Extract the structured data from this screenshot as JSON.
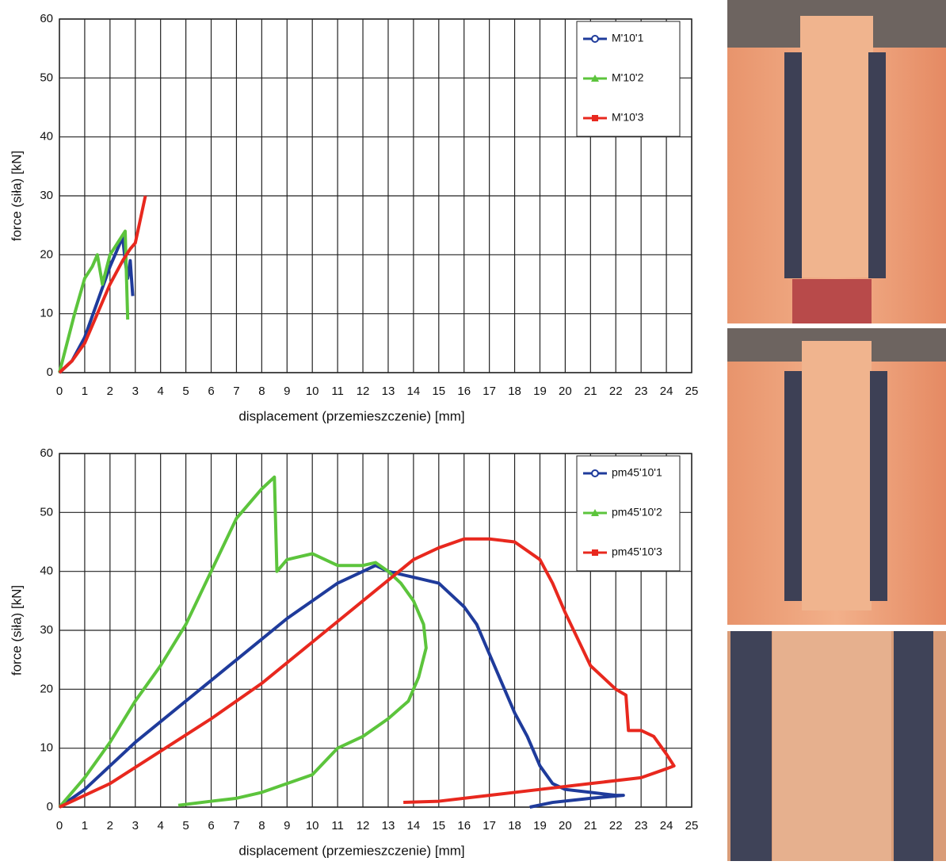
{
  "chart_data": [
    {
      "type": "line",
      "x_label": "displacement (przemieszczenie) [mm]",
      "y_label": "force (siła) [kN]",
      "xlim": [
        0,
        25
      ],
      "ylim": [
        0,
        60
      ],
      "xticks": [
        0,
        1,
        2,
        3,
        4,
        5,
        6,
        7,
        8,
        9,
        10,
        11,
        12,
        13,
        14,
        15,
        16,
        17,
        18,
        19,
        20,
        21,
        22,
        23,
        24,
        25
      ],
      "yticks": [
        0,
        10,
        20,
        30,
        40,
        50,
        60
      ],
      "grid": true,
      "legend": "upper right",
      "series": [
        {
          "name": "M'10'1",
          "color": "#1f3b9b",
          "marker": "circle",
          "x": [
            0,
            0.5,
            1,
            1.5,
            2,
            2.3,
            2.5,
            2.6,
            2.7,
            2.8,
            2.9
          ],
          "values": [
            0,
            2,
            6,
            12,
            18,
            21,
            23,
            19,
            16,
            19,
            13
          ]
        },
        {
          "name": "M'10'2",
          "color": "#5cc43c",
          "marker": "triangle",
          "x": [
            0,
            0.3,
            0.6,
            1,
            1.3,
            1.5,
            1.7,
            2,
            2.3,
            2.6,
            2.7
          ],
          "values": [
            0,
            5,
            10,
            16,
            18,
            20,
            15,
            20,
            22,
            24,
            9
          ]
        },
        {
          "name": "M'10'3",
          "color": "#e8281e",
          "marker": "square",
          "x": [
            0,
            0.5,
            1,
            1.5,
            2,
            2.5,
            2.8,
            3,
            3.2,
            3.4
          ],
          "values": [
            0,
            2,
            5,
            10,
            15,
            19,
            21,
            22,
            26,
            30
          ]
        }
      ]
    },
    {
      "type": "line",
      "x_label": "displacement (przemieszczenie) [mm]",
      "y_label": "force (siła) [kN]",
      "xlim": [
        0,
        25
      ],
      "ylim": [
        0,
        60
      ],
      "xticks": [
        0,
        1,
        2,
        3,
        4,
        5,
        6,
        7,
        8,
        9,
        10,
        11,
        12,
        13,
        14,
        15,
        16,
        17,
        18,
        19,
        20,
        21,
        22,
        23,
        24,
        25
      ],
      "yticks": [
        0,
        10,
        20,
        30,
        40,
        50,
        60
      ],
      "grid": true,
      "legend": "upper right",
      "series": [
        {
          "name": "pm45'10'1",
          "color": "#1f3b9b",
          "marker": "circle",
          "x": [
            0,
            1,
            2,
            3,
            4,
            5,
            6,
            7,
            8,
            9,
            10,
            11,
            12,
            12.5,
            13,
            14,
            15,
            16,
            16.5,
            17,
            17.5,
            18,
            18.5,
            19,
            19.5,
            20,
            21,
            22,
            22.3,
            21,
            19.5,
            18.6
          ],
          "values": [
            0,
            3,
            7,
            11,
            14.5,
            18,
            21.5,
            25,
            28.5,
            32,
            35,
            38,
            40,
            41,
            40,
            39,
            38,
            34,
            31,
            26,
            21,
            16,
            12,
            7,
            4,
            3,
            2.5,
            2,
            2,
            1.5,
            0.8,
            0
          ]
        },
        {
          "name": "pm45'10'2",
          "color": "#5cc43c",
          "marker": "triangle",
          "x": [
            0,
            1,
            2,
            3,
            4,
            5,
            6,
            7,
            8,
            8.5,
            8.6,
            9,
            10,
            11,
            12,
            12.5,
            13,
            13.5,
            14,
            14.4,
            14.5,
            14.2,
            13.8,
            13,
            12,
            11,
            10,
            9,
            8,
            7,
            6,
            4.7
          ],
          "values": [
            0,
            5,
            11,
            18,
            24,
            31,
            40,
            49,
            54,
            56,
            40,
            42,
            43,
            41,
            41,
            41.5,
            40,
            38,
            35,
            31,
            27,
            22,
            18,
            15,
            12,
            10,
            5.5,
            4,
            2.5,
            1.5,
            1,
            0.3
          ]
        },
        {
          "name": "pm45'10'3",
          "color": "#e8281e",
          "marker": "square",
          "x": [
            0,
            2,
            4,
            6,
            8,
            10,
            12,
            13,
            14,
            15,
            16,
            17,
            18,
            19,
            19.5,
            20,
            21,
            21.5,
            22,
            22.4,
            22.5,
            23,
            23.5,
            24,
            24.3,
            24,
            23,
            21,
            19,
            17,
            15,
            13.6
          ],
          "values": [
            0,
            4,
            9.5,
            15,
            21,
            28,
            35,
            38.5,
            42,
            44,
            45.5,
            45.5,
            45,
            42,
            38,
            33,
            24,
            22,
            20,
            19,
            13,
            13,
            12,
            9,
            7,
            6.5,
            5,
            4,
            3,
            2,
            1,
            0.8
          ]
        }
      ]
    }
  ]
}
